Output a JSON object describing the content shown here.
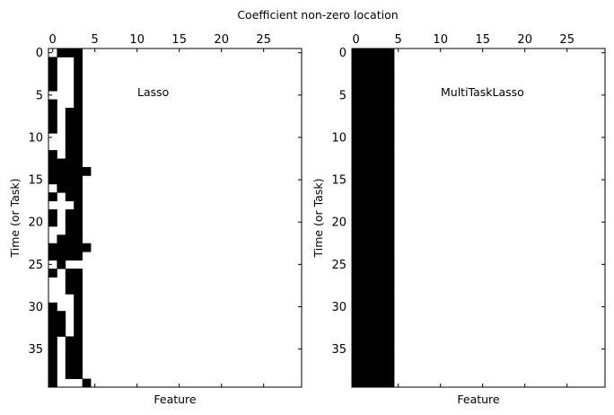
{
  "figure": {
    "title": "Coefficient non-zero location"
  },
  "chart_data": [
    {
      "type": "heatmap",
      "title": "Lasso",
      "xlabel": "Feature",
      "ylabel": "Time (or Task)",
      "x_ticks": [
        0,
        5,
        10,
        15,
        20,
        25
      ],
      "y_ticks": [
        0,
        5,
        10,
        15,
        20,
        25,
        30,
        35
      ],
      "xlim": [
        -0.5,
        29.5
      ],
      "ylim": [
        39.5,
        -0.5
      ],
      "n_features": 30,
      "n_tasks": 40,
      "colors": {
        "nonzero": "#000000",
        "zero": "#ffffff"
      },
      "nonzero_rows": [
        "0111",
        "1001",
        "1001",
        "1001",
        "1001",
        "0001",
        "1001",
        "1011",
        "1011",
        "1011",
        "0011",
        "0011",
        "1011",
        "1111",
        "11111",
        "1111",
        "0111",
        "1011",
        "0001",
        "1011",
        "1011",
        "0011",
        "0111",
        "11111",
        "1111",
        "01",
        "1011",
        "0011",
        "0011",
        "0001",
        "1001",
        "1101",
        "1101",
        "1101",
        "1011",
        "1011",
        "1011",
        "1011",
        "1011",
        "10001"
      ]
    },
    {
      "type": "heatmap",
      "title": "MultiTaskLasso",
      "xlabel": "Feature",
      "ylabel": "Time (or Task)",
      "x_ticks": [
        0,
        5,
        10,
        15,
        20,
        25
      ],
      "y_ticks": [
        0,
        5,
        10,
        15,
        20,
        25,
        30,
        35
      ],
      "xlim": [
        -0.5,
        29.5
      ],
      "ylim": [
        39.5,
        -0.5
      ],
      "n_features": 30,
      "n_tasks": 40,
      "colors": {
        "nonzero": "#000000",
        "zero": "#ffffff"
      },
      "nonzero_columns": [
        0,
        1,
        2,
        3,
        4
      ]
    }
  ]
}
